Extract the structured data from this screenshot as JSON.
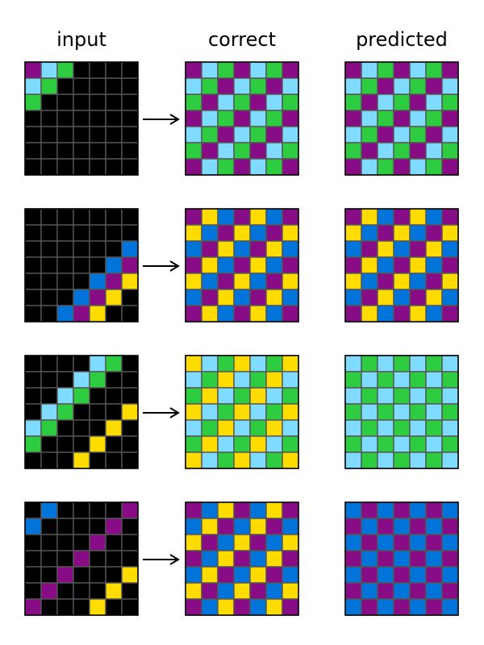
{
  "headers": {
    "input": "input",
    "correct": "correct",
    "predicted": "predicted"
  },
  "palette": {
    "0": "#000000",
    "1": "#0074D9",
    "3": "#2ECC40",
    "4": "#FFDC00",
    "6": "#870C85",
    "8": "#7FDBFF"
  },
  "grid_line_color": "#555555",
  "examples": [
    {
      "input": [
        [
          6,
          8,
          3,
          0,
          0,
          0,
          0
        ],
        [
          8,
          3,
          0,
          0,
          0,
          0,
          0
        ],
        [
          3,
          0,
          0,
          0,
          0,
          0,
          0
        ],
        [
          0,
          0,
          0,
          0,
          0,
          0,
          0
        ],
        [
          0,
          0,
          0,
          0,
          0,
          0,
          0
        ],
        [
          0,
          0,
          0,
          0,
          0,
          0,
          0
        ],
        [
          0,
          0,
          0,
          0,
          0,
          0,
          0
        ]
      ],
      "correct": [
        [
          6,
          8,
          3,
          6,
          8,
          3,
          6
        ],
        [
          8,
          3,
          6,
          8,
          3,
          6,
          8
        ],
        [
          3,
          6,
          8,
          3,
          6,
          8,
          3
        ],
        [
          6,
          8,
          3,
          6,
          8,
          3,
          6
        ],
        [
          8,
          3,
          6,
          8,
          3,
          6,
          8
        ],
        [
          3,
          6,
          8,
          3,
          6,
          8,
          3
        ],
        [
          6,
          8,
          3,
          6,
          8,
          3,
          6
        ]
      ],
      "predicted": [
        [
          6,
          8,
          3,
          6,
          8,
          3,
          6
        ],
        [
          8,
          3,
          6,
          8,
          3,
          6,
          8
        ],
        [
          3,
          6,
          8,
          3,
          6,
          8,
          3
        ],
        [
          6,
          8,
          3,
          6,
          8,
          3,
          6
        ],
        [
          8,
          3,
          6,
          8,
          3,
          6,
          8
        ],
        [
          3,
          6,
          8,
          3,
          6,
          8,
          3
        ],
        [
          6,
          8,
          3,
          6,
          8,
          3,
          6
        ]
      ]
    },
    {
      "input": [
        [
          0,
          0,
          0,
          0,
          0,
          0,
          0
        ],
        [
          0,
          0,
          0,
          0,
          0,
          0,
          0
        ],
        [
          0,
          0,
          0,
          0,
          0,
          0,
          1
        ],
        [
          0,
          0,
          0,
          0,
          0,
          1,
          6
        ],
        [
          0,
          0,
          0,
          0,
          1,
          6,
          4
        ],
        [
          0,
          0,
          0,
          1,
          6,
          4,
          0
        ],
        [
          0,
          0,
          1,
          6,
          4,
          0,
          0
        ]
      ],
      "correct": [
        [
          6,
          4,
          1,
          6,
          4,
          1,
          6
        ],
        [
          4,
          1,
          6,
          4,
          1,
          6,
          4
        ],
        [
          1,
          6,
          4,
          1,
          6,
          4,
          1
        ],
        [
          6,
          4,
          1,
          6,
          4,
          1,
          6
        ],
        [
          4,
          1,
          6,
          4,
          1,
          6,
          4
        ],
        [
          1,
          6,
          4,
          1,
          6,
          4,
          1
        ],
        [
          6,
          4,
          1,
          6,
          4,
          1,
          6
        ]
      ],
      "predicted": [
        [
          6,
          4,
          1,
          6,
          4,
          1,
          6
        ],
        [
          4,
          1,
          6,
          4,
          1,
          6,
          4
        ],
        [
          1,
          6,
          4,
          1,
          6,
          4,
          1
        ],
        [
          6,
          4,
          1,
          6,
          4,
          1,
          6
        ],
        [
          4,
          1,
          6,
          4,
          1,
          6,
          4
        ],
        [
          1,
          6,
          4,
          1,
          6,
          4,
          1
        ],
        [
          6,
          4,
          1,
          6,
          4,
          1,
          6
        ]
      ]
    },
    {
      "input": [
        [
          0,
          0,
          0,
          0,
          8,
          3,
          0
        ],
        [
          0,
          0,
          0,
          8,
          3,
          0,
          0
        ],
        [
          0,
          0,
          8,
          3,
          0,
          0,
          0
        ],
        [
          0,
          8,
          3,
          0,
          0,
          0,
          4
        ],
        [
          8,
          3,
          0,
          0,
          0,
          4,
          0
        ],
        [
          3,
          0,
          0,
          0,
          4,
          0,
          0
        ],
        [
          0,
          0,
          0,
          4,
          0,
          0,
          0
        ]
      ],
      "correct": [
        [
          4,
          8,
          3,
          4,
          8,
          3,
          4
        ],
        [
          8,
          3,
          4,
          8,
          3,
          4,
          8
        ],
        [
          3,
          4,
          8,
          3,
          4,
          8,
          3
        ],
        [
          4,
          8,
          3,
          4,
          8,
          3,
          4
        ],
        [
          8,
          3,
          4,
          8,
          3,
          4,
          8
        ],
        [
          3,
          4,
          8,
          3,
          4,
          8,
          3
        ],
        [
          4,
          8,
          3,
          4,
          8,
          3,
          4
        ]
      ],
      "predicted": [
        [
          8,
          3,
          8,
          3,
          8,
          3,
          8
        ],
        [
          3,
          8,
          3,
          8,
          3,
          8,
          3
        ],
        [
          8,
          3,
          8,
          3,
          8,
          3,
          8
        ],
        [
          3,
          8,
          3,
          8,
          3,
          8,
          3
        ],
        [
          8,
          3,
          8,
          3,
          8,
          3,
          8
        ],
        [
          3,
          8,
          3,
          8,
          3,
          8,
          3
        ],
        [
          8,
          3,
          8,
          3,
          8,
          3,
          8
        ]
      ]
    },
    {
      "input": [
        [
          0,
          1,
          0,
          0,
          0,
          0,
          6
        ],
        [
          1,
          0,
          0,
          0,
          0,
          6,
          0
        ],
        [
          0,
          0,
          0,
          0,
          6,
          0,
          0
        ],
        [
          0,
          0,
          0,
          6,
          0,
          0,
          0
        ],
        [
          0,
          0,
          6,
          0,
          0,
          0,
          4
        ],
        [
          0,
          6,
          0,
          0,
          0,
          4,
          0
        ],
        [
          6,
          0,
          0,
          0,
          4,
          0,
          0
        ]
      ],
      "correct": [
        [
          6,
          1,
          4,
          6,
          1,
          4,
          6
        ],
        [
          1,
          4,
          6,
          1,
          4,
          6,
          1
        ],
        [
          4,
          6,
          1,
          4,
          6,
          1,
          4
        ],
        [
          6,
          1,
          4,
          6,
          1,
          4,
          6
        ],
        [
          1,
          4,
          6,
          1,
          4,
          6,
          1
        ],
        [
          4,
          6,
          1,
          4,
          6,
          1,
          4
        ],
        [
          6,
          1,
          4,
          6,
          1,
          4,
          6
        ]
      ],
      "predicted": [
        [
          1,
          6,
          1,
          6,
          1,
          6,
          1
        ],
        [
          6,
          1,
          6,
          1,
          6,
          1,
          6
        ],
        [
          1,
          6,
          1,
          6,
          1,
          6,
          1
        ],
        [
          6,
          1,
          6,
          1,
          6,
          1,
          6
        ],
        [
          1,
          6,
          1,
          6,
          1,
          6,
          1
        ],
        [
          6,
          1,
          6,
          1,
          6,
          1,
          6
        ],
        [
          1,
          6,
          1,
          6,
          1,
          6,
          1
        ]
      ]
    }
  ]
}
